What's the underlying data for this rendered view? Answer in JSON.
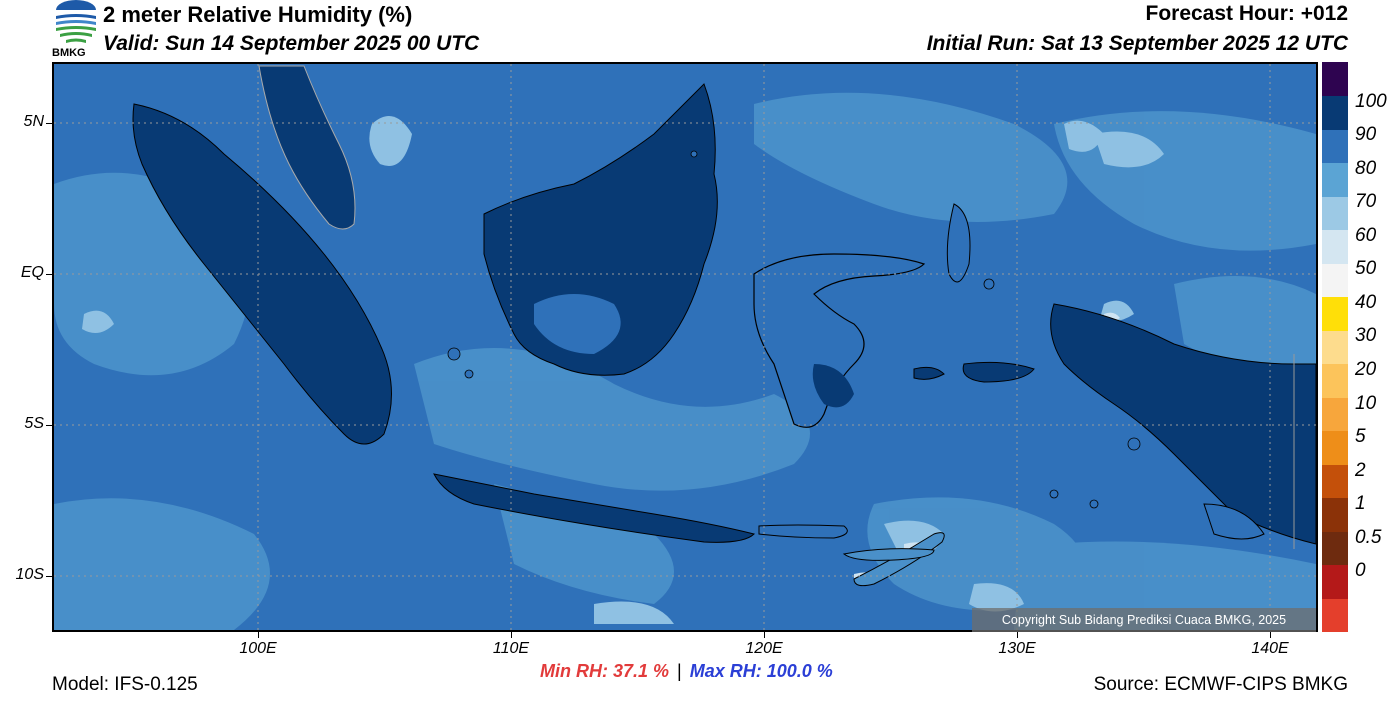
{
  "header": {
    "title": "2 meter Relative Humidity (%)",
    "valid": "Valid: Sun 14 September 2025 00 UTC",
    "forecast_hour": "Forecast Hour: +012",
    "initial_run": "Initial Run: Sat 13 September 2025 12 UTC",
    "logo_text": "BMKG"
  },
  "map": {
    "lat_labels": [
      "5N",
      "EQ",
      "5S",
      "10S"
    ],
    "lon_labels": [
      "100E",
      "110E",
      "120E",
      "130E",
      "140E"
    ],
    "copyright": "Copyright Sub Bidang Prediksi Cuaca BMKG, 2025"
  },
  "footer": {
    "model": "Model: IFS-0.125",
    "source": "Source: ECMWF-CIPS BMKG",
    "min_label": "Min RH:  37.1 %",
    "separator": "|",
    "max_label": "Max RH: 100.0 %"
  },
  "colorbar": {
    "labels": [
      "100",
      "90",
      "80",
      "70",
      "60",
      "50",
      "40",
      "30",
      "20",
      "10",
      "5",
      "2",
      "1",
      "0.5",
      "0"
    ],
    "colors": [
      "#e43f2c",
      "#b41919",
      "#6e2b0f",
      "#8b3208",
      "#c4500a",
      "#ee8e19",
      "#f7a63c",
      "#fcc45b",
      "#fddc8d",
      "#ffdf08",
      "#f4f4f4",
      "#d4e6f1",
      "#9cc9e5",
      "#5ba4d4",
      "#2f71b9",
      "#083a74",
      "#2e0450"
    ]
  }
}
